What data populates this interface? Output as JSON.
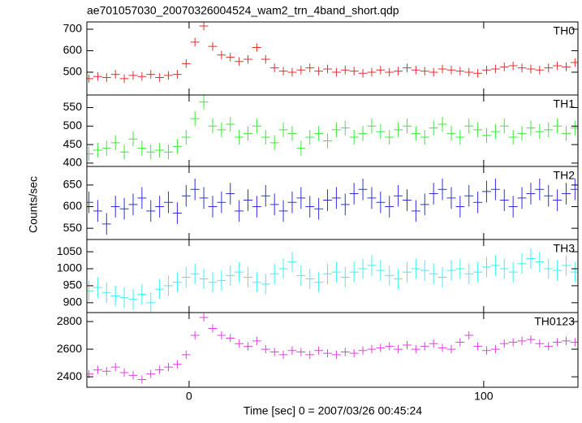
{
  "chart_data": [
    {
      "type": "line",
      "title": "ae701057030_20070326004524_wam2_trn_4band_short.qdp",
      "label": "TH0",
      "color": "#e03030",
      "x": [
        -34,
        -31,
        -28,
        -25,
        -22,
        -19,
        -16,
        -13,
        -10,
        -7,
        -4,
        -1,
        2,
        5,
        8,
        11,
        14,
        17,
        20,
        23,
        26,
        29,
        32,
        35,
        38,
        41,
        44,
        47,
        50,
        53,
        56,
        59,
        62,
        65,
        68,
        71,
        74,
        77,
        80,
        83,
        86,
        89,
        92,
        95,
        98,
        101,
        104,
        107,
        110,
        113,
        116,
        119,
        122,
        125,
        128,
        131
      ],
      "values": [
        470,
        480,
        475,
        490,
        470,
        485,
        480,
        490,
        475,
        485,
        490,
        540,
        640,
        715,
        620,
        580,
        570,
        550,
        560,
        615,
        560,
        520,
        505,
        500,
        510,
        520,
        505,
        515,
        500,
        510,
        505,
        495,
        500,
        510,
        500,
        505,
        520,
        510,
        505,
        500,
        515,
        510,
        505,
        500,
        495,
        510,
        515,
        525,
        530,
        520,
        515,
        510,
        520,
        530,
        525,
        545
      ],
      "error": 20,
      "xlim": [
        -34.7,
        132
      ],
      "ylim": [
        394,
        734
      ],
      "yticks": [
        500,
        600,
        700
      ]
    },
    {
      "type": "line",
      "label": "TH1",
      "color": "#3ee83e",
      "x": [
        -34,
        -31,
        -28,
        -25,
        -22,
        -19,
        -16,
        -13,
        -10,
        -7,
        -4,
        -1,
        2,
        5,
        8,
        11,
        14,
        17,
        20,
        23,
        26,
        29,
        32,
        35,
        38,
        41,
        44,
        47,
        50,
        53,
        56,
        59,
        62,
        65,
        68,
        71,
        74,
        77,
        80,
        83,
        86,
        89,
        92,
        95,
        98,
        101,
        104,
        107,
        110,
        113,
        116,
        119,
        122,
        125,
        128,
        131
      ],
      "values": [
        425,
        435,
        440,
        455,
        430,
        465,
        440,
        430,
        435,
        430,
        445,
        470,
        520,
        565,
        500,
        490,
        505,
        470,
        480,
        500,
        470,
        455,
        490,
        480,
        440,
        470,
        480,
        460,
        490,
        495,
        470,
        480,
        500,
        485,
        470,
        490,
        500,
        480,
        470,
        495,
        505,
        480,
        470,
        500,
        490,
        475,
        485,
        500,
        470,
        480,
        495,
        485,
        490,
        500,
        480,
        495
      ],
      "error": 20,
      "xlim": [
        -34.7,
        132
      ],
      "ylim": [
        391,
        584
      ],
      "yticks": [
        400,
        450,
        500,
        550
      ]
    },
    {
      "type": "line",
      "label": "TH2",
      "ylabel": "Counts/sec",
      "color": "#3030e0",
      "x": [
        -34,
        -31,
        -28,
        -25,
        -22,
        -19,
        -16,
        -13,
        -10,
        -7,
        -4,
        -1,
        2,
        5,
        8,
        11,
        14,
        17,
        20,
        23,
        26,
        29,
        32,
        35,
        38,
        41,
        44,
        47,
        50,
        53,
        56,
        59,
        62,
        65,
        68,
        71,
        74,
        77,
        80,
        83,
        86,
        89,
        92,
        95,
        98,
        101,
        104,
        107,
        110,
        113,
        116,
        119,
        122,
        125,
        128,
        131
      ],
      "values": [
        610,
        590,
        560,
        600,
        595,
        605,
        620,
        590,
        600,
        610,
        585,
        625,
        640,
        620,
        600,
        610,
        630,
        590,
        615,
        600,
        625,
        605,
        590,
        610,
        620,
        600,
        595,
        615,
        620,
        605,
        630,
        640,
        620,
        610,
        600,
        625,
        615,
        590,
        605,
        630,
        640,
        620,
        600,
        625,
        610,
        635,
        640,
        615,
        600,
        620,
        630,
        640,
        625,
        615,
        630,
        640
      ],
      "error": 25,
      "xlim": [
        -34.7,
        132
      ],
      "ylim": [
        524,
        693
      ],
      "yticks": [
        550,
        600,
        650
      ]
    },
    {
      "type": "line",
      "label": "TH3",
      "color": "#40f0f0",
      "x": [
        -34,
        -31,
        -28,
        -25,
        -22,
        -19,
        -16,
        -13,
        -10,
        -7,
        -4,
        -1,
        2,
        5,
        8,
        11,
        14,
        17,
        20,
        23,
        26,
        29,
        32,
        35,
        38,
        41,
        44,
        47,
        50,
        53,
        56,
        59,
        62,
        65,
        68,
        71,
        74,
        77,
        80,
        83,
        86,
        89,
        92,
        95,
        98,
        101,
        104,
        107,
        110,
        113,
        116,
        119,
        122,
        125,
        128,
        131
      ],
      "values": [
        935,
        945,
        930,
        920,
        915,
        910,
        925,
        900,
        940,
        950,
        960,
        975,
        985,
        970,
        960,
        965,
        980,
        990,
        975,
        960,
        955,
        985,
        1000,
        1020,
        980,
        970,
        960,
        985,
        990,
        975,
        990,
        1000,
        1010,
        995,
        980,
        970,
        990,
        1000,
        995,
        985,
        975,
        995,
        1000,
        985,
        990,
        1005,
        1010,
        1000,
        990,
        1015,
        1030,
        1020,
        1000,
        995,
        1010,
        990
      ],
      "error": 30,
      "xlim": [
        -34.7,
        132
      ],
      "ylim": [
        871,
        1086
      ],
      "yticks": [
        900,
        950,
        1000,
        1050
      ]
    },
    {
      "type": "line",
      "label": "TH0123",
      "xlabel": "Time [sec] 0 = 2007/03/26 00:45:24",
      "color": "#e040e0",
      "x": [
        -34,
        -31,
        -28,
        -25,
        -22,
        -19,
        -16,
        -13,
        -10,
        -7,
        -4,
        -1,
        2,
        5,
        8,
        11,
        14,
        17,
        20,
        23,
        26,
        29,
        32,
        35,
        38,
        41,
        44,
        47,
        50,
        53,
        56,
        59,
        62,
        65,
        68,
        71,
        74,
        77,
        80,
        83,
        86,
        89,
        92,
        95,
        98,
        101,
        104,
        107,
        110,
        113,
        116,
        119,
        122,
        125,
        128,
        131
      ],
      "values": [
        2420,
        2450,
        2440,
        2470,
        2430,
        2410,
        2380,
        2420,
        2450,
        2470,
        2490,
        2560,
        2700,
        2830,
        2750,
        2700,
        2680,
        2640,
        2620,
        2660,
        2600,
        2580,
        2560,
        2590,
        2580,
        2560,
        2590,
        2570,
        2560,
        2580,
        2570,
        2590,
        2600,
        2610,
        2620,
        2600,
        2630,
        2600,
        2620,
        2640,
        2610,
        2600,
        2650,
        2700,
        2620,
        2590,
        2600,
        2640,
        2650,
        2660,
        2670,
        2640,
        2620,
        2650,
        2660,
        2650
      ],
      "error": 30,
      "xlim": [
        -34.7,
        132
      ],
      "ylim": [
        2324,
        2865
      ],
      "yticks": [
        2400,
        2600,
        2800
      ],
      "xticks": [
        0,
        100
      ]
    }
  ]
}
